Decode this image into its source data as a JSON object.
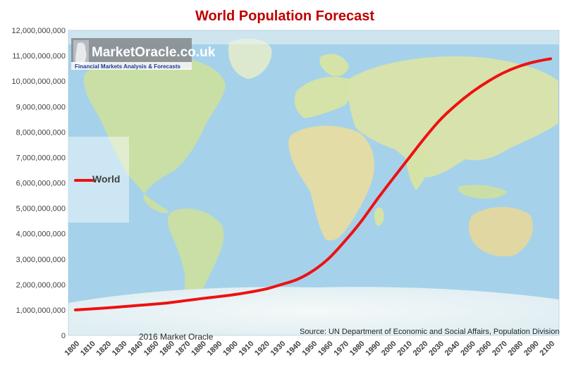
{
  "chart_data": {
    "type": "line",
    "title": "World Population Forecast",
    "xlabel": "",
    "ylabel": "",
    "x": [
      1800,
      1810,
      1820,
      1830,
      1840,
      1850,
      1860,
      1870,
      1880,
      1890,
      1900,
      1910,
      1920,
      1930,
      1940,
      1950,
      1960,
      1970,
      1980,
      1990,
      2000,
      2010,
      2020,
      2030,
      2040,
      2050,
      2060,
      2070,
      2080,
      2090,
      2100
    ],
    "xlim": [
      1800,
      2100
    ],
    "ylim": [
      0,
      12000000000
    ],
    "y_ticks": [
      0,
      1000000000,
      2000000000,
      3000000000,
      4000000000,
      5000000000,
      6000000000,
      7000000000,
      8000000000,
      9000000000,
      10000000000,
      11000000000,
      12000000000
    ],
    "y_tick_labels": [
      "0",
      "1,000,000,000",
      "2,000,000,000",
      "3,000,000,000",
      "4,000,000,000",
      "5,000,000,000",
      "6,000,000,000",
      "7,000,000,000",
      "8,000,000,000",
      "9,000,000,000",
      "10,000,000,000",
      "11,000,000,000",
      "12,000,000,000"
    ],
    "x_tick_labels": [
      "1800",
      "1810",
      "1820",
      "1830",
      "1840",
      "1850",
      "1860",
      "1870",
      "1880",
      "1890",
      "1900",
      "1910",
      "1920",
      "1930",
      "1940",
      "1950",
      "1960",
      "1970",
      "1980",
      "1990",
      "2000",
      "2010",
      "2020",
      "2030",
      "2040",
      "2050",
      "2060",
      "2070",
      "2080",
      "2090",
      "2100"
    ],
    "series": [
      {
        "name": "World",
        "color": "#ee1111",
        "values": [
          1000000000,
          1040000000,
          1080000000,
          1130000000,
          1180000000,
          1230000000,
          1290000000,
          1370000000,
          1450000000,
          1520000000,
          1600000000,
          1700000000,
          1820000000,
          2000000000,
          2200000000,
          2540000000,
          3030000000,
          3700000000,
          4450000000,
          5310000000,
          6130000000,
          6930000000,
          7730000000,
          8460000000,
          9050000000,
          9550000000,
          9970000000,
          10320000000,
          10580000000,
          10760000000,
          10880000000
        ]
      }
    ],
    "legend_position": "left",
    "grid": false
  },
  "logo": {
    "name": "MarketOracle.co.uk",
    "tagline": "Financial Markets Analysis & Forecasts"
  },
  "footer": {
    "copyright": "2016 Market Oracle",
    "source": "Source: UN Department of Economic and Social Affairs, Population Division"
  },
  "colors": {
    "title": "#c00000",
    "series": "#ee1111",
    "axis_text": "#404040",
    "ocean": "#a9d4ec",
    "land": "#c9dfa6"
  }
}
